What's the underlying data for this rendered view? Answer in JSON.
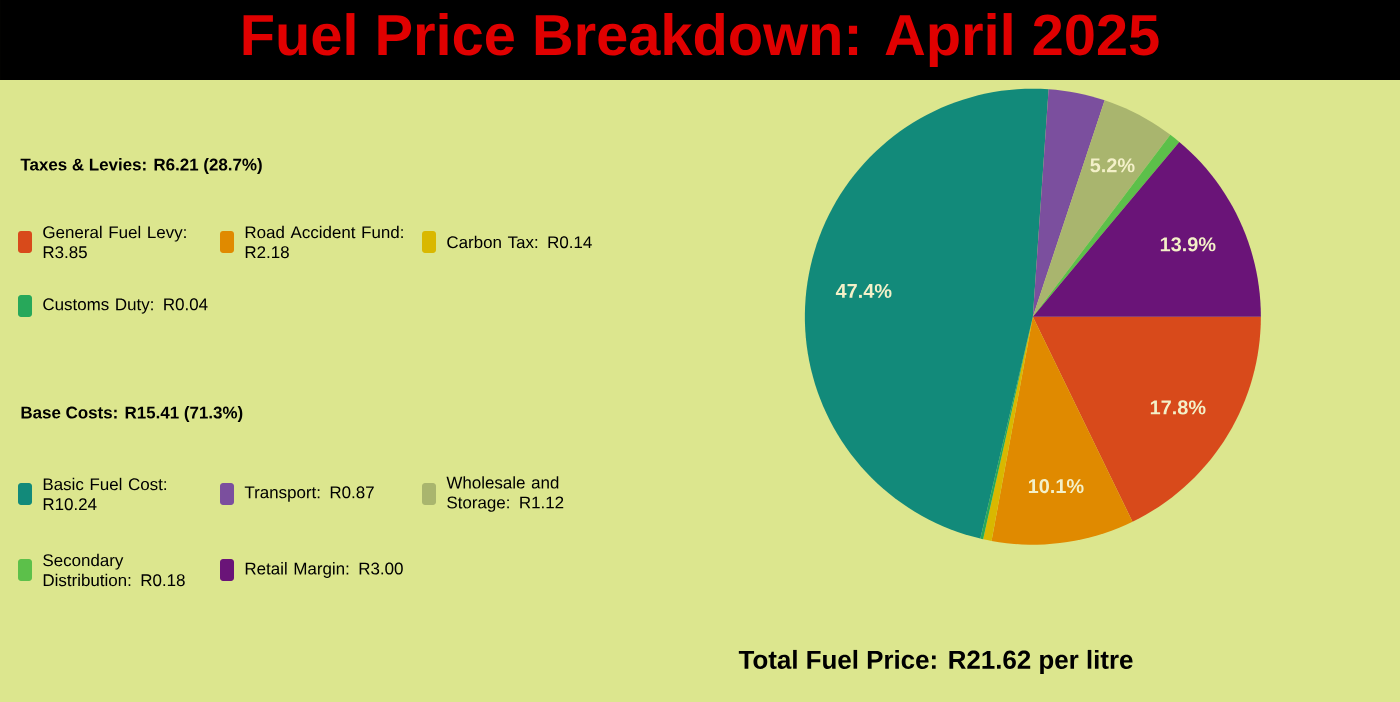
{
  "chart_data": {
    "type": "pie",
    "title": "Fuel Price Breakdown: April 2025",
    "categories": [
      "General Fuel Levy: R3.85",
      "Road Accident Fund: R2.18",
      "Carbon Tax: R0.14",
      "Customs Duty: R0.04",
      "Basic Fuel Cost: R10.24",
      "Transport: R0.87",
      "Wholesale and Storage: R1.12",
      "Secondary Distribution: R0.18",
      "Retail Margin: R3.00"
    ],
    "values": [
      17.8,
      10.1,
      0.6,
      0.2,
      47.4,
      4.0,
      5.2,
      0.8,
      13.9
    ],
    "colors": [
      "#d84a1b",
      "#e08a00",
      "#d9b800",
      "#27a85a",
      "#128a7a",
      "#7b4f9e",
      "#a9b56e",
      "#5cc04a",
      "#6a1478"
    ],
    "value_labels": [
      "17.8%",
      "10.1%",
      null,
      null,
      "47.4%",
      null,
      "5.2%",
      null,
      "13.9%"
    ],
    "annotations": [
      "Taxes & Levies: R6.21 (28.7%)",
      "Base Costs: R15.41 (71.3%)",
      "Total Fuel Price: R21.62 per litre"
    ],
    "legend": "left"
  }
}
